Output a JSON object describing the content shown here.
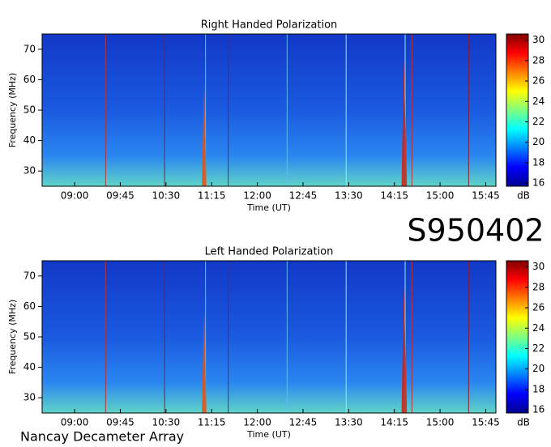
{
  "chart_data": [
    {
      "type": "spectrogram",
      "title": "Right Handed Polarization",
      "x_label": "Time (UT)",
      "y_label": "Frequency (MHz)",
      "xlim": [
        508,
        955
      ],
      "xticks": [
        {
          "value": 540,
          "label": "09:00"
        },
        {
          "value": 585,
          "label": "09:45"
        },
        {
          "value": 630,
          "label": "10:30"
        },
        {
          "value": 675,
          "label": "11:15"
        },
        {
          "value": 720,
          "label": "12:00"
        },
        {
          "value": 765,
          "label": "12:45"
        },
        {
          "value": 810,
          "label": "13:30"
        },
        {
          "value": 855,
          "label": "14:15"
        },
        {
          "value": 900,
          "label": "15:00"
        },
        {
          "value": 945,
          "label": "15:45"
        }
      ],
      "ylim": [
        25,
        75
      ],
      "yticks": [
        30,
        40,
        50,
        60,
        70
      ],
      "colormap": "jet",
      "colorbar_label": "dB",
      "clim": [
        15.7,
        30.6
      ],
      "cticks": [
        16,
        18,
        20,
        22,
        24,
        26,
        28,
        30
      ]
    },
    {
      "type": "spectrogram",
      "title": "Left Handed Polarization",
      "x_label": "Time (UT)",
      "y_label": "Frequency (MHz)",
      "xlim": [
        508,
        955
      ],
      "xticks": [
        {
          "value": 540,
          "label": "09:00"
        },
        {
          "value": 585,
          "label": "09:45"
        },
        {
          "value": 630,
          "label": "10:30"
        },
        {
          "value": 675,
          "label": "11:15"
        },
        {
          "value": 720,
          "label": "12:00"
        },
        {
          "value": 765,
          "label": "12:45"
        },
        {
          "value": 810,
          "label": "13:30"
        },
        {
          "value": 855,
          "label": "14:15"
        },
        {
          "value": 900,
          "label": "15:00"
        },
        {
          "value": 945,
          "label": "15:45"
        }
      ],
      "ylim": [
        25,
        75
      ],
      "yticks": [
        30,
        40,
        50,
        60,
        70
      ],
      "colormap": "jet",
      "colorbar_label": "dB",
      "clim": [
        15.7,
        30.6
      ],
      "cticks": [
        16,
        18,
        20,
        22,
        24,
        26,
        28,
        30
      ]
    }
  ],
  "observation_id": "S950402",
  "instrument": "Nancay Decameter Array"
}
